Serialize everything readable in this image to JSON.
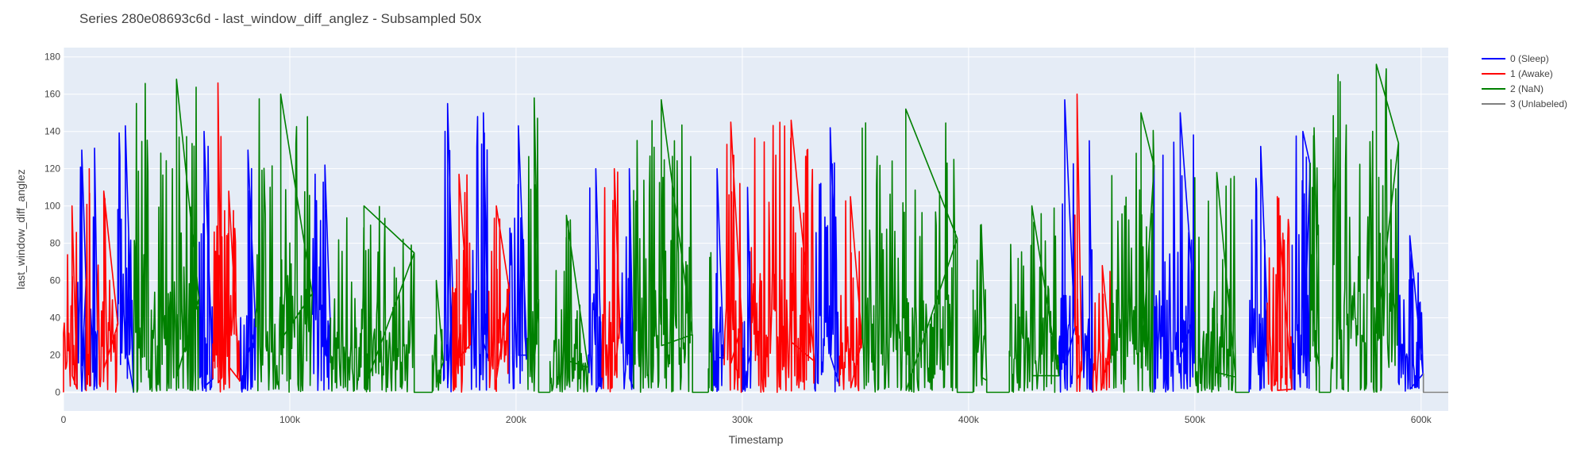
{
  "chart_data": {
    "type": "line",
    "title": "Series 280e08693c6d - last_window_diff_anglez - Subsampled 50x",
    "xlabel": "Timestamp",
    "ylabel": "last_window_diff_anglez",
    "xlim": [
      0,
      612000
    ],
    "ylim": [
      -10,
      185
    ],
    "x_ticks": [
      0,
      100000,
      200000,
      300000,
      400000,
      500000,
      600000
    ],
    "x_tick_labels": [
      "0",
      "100k",
      "200k",
      "300k",
      "400k",
      "500k",
      "600k"
    ],
    "y_ticks": [
      0,
      20,
      40,
      60,
      80,
      100,
      120,
      140,
      160,
      180
    ],
    "y_tick_labels": [
      "0",
      "20",
      "40",
      "60",
      "80",
      "100",
      "120",
      "140",
      "160",
      "180"
    ],
    "grid": true,
    "legend_position": "top-right",
    "series": [
      {
        "name": "0 (Sleep)",
        "color": "#0000ff"
      },
      {
        "name": "1 (Awake)",
        "color": "#ff0000"
      },
      {
        "name": "2 (NaN)",
        "color": "#008000"
      },
      {
        "name": "3 (Unlabeled)",
        "color": "#808080"
      }
    ],
    "segments": [
      {
        "series": 1,
        "x0": 0,
        "x1": 6000,
        "lo": 0,
        "hi": 100
      },
      {
        "series": 0,
        "x0": 6000,
        "x1": 10000,
        "lo": 0,
        "hi": 130
      },
      {
        "series": 1,
        "x0": 10000,
        "x1": 12000,
        "lo": 0,
        "hi": 120
      },
      {
        "series": 0,
        "x0": 12000,
        "x1": 15000,
        "lo": 0,
        "hi": 131
      },
      {
        "series": 1,
        "x0": 15000,
        "x1": 24000,
        "lo": 0,
        "hi": 108
      },
      {
        "series": 0,
        "x0": 24000,
        "x1": 31000,
        "lo": 0,
        "hi": 143
      },
      {
        "series": 2,
        "x0": 31000,
        "x1": 60000,
        "lo": 0,
        "hi": 168
      },
      {
        "series": 0,
        "x0": 60000,
        "x1": 66000,
        "lo": 0,
        "hi": 140
      },
      {
        "series": 1,
        "x0": 66000,
        "x1": 70000,
        "lo": 0,
        "hi": 166
      },
      {
        "series": 1,
        "x0": 70000,
        "x1": 78000,
        "lo": 0,
        "hi": 108
      },
      {
        "series": 0,
        "x0": 78000,
        "x1": 85000,
        "lo": 0,
        "hi": 130
      },
      {
        "series": 2,
        "x0": 85000,
        "x1": 110000,
        "lo": 0,
        "hi": 160
      },
      {
        "series": 0,
        "x0": 110000,
        "x1": 118000,
        "lo": 0,
        "hi": 122
      },
      {
        "series": 2,
        "x0": 118000,
        "x1": 155000,
        "lo": 0,
        "hi": 100
      },
      {
        "series": 2,
        "x0": 155000,
        "x1": 163000,
        "flat": 0
      },
      {
        "series": 2,
        "x0": 163000,
        "x1": 168000,
        "lo": 0,
        "hi": 60
      },
      {
        "series": 0,
        "x0": 168000,
        "x1": 172000,
        "lo": 0,
        "hi": 155
      },
      {
        "series": 1,
        "x0": 172000,
        "x1": 180000,
        "lo": 0,
        "hi": 117
      },
      {
        "series": 0,
        "x0": 180000,
        "x1": 188000,
        "lo": 0,
        "hi": 150
      },
      {
        "series": 1,
        "x0": 188000,
        "x1": 197000,
        "lo": 0,
        "hi": 100
      },
      {
        "series": 0,
        "x0": 197000,
        "x1": 205000,
        "lo": 0,
        "hi": 143
      },
      {
        "series": 2,
        "x0": 205000,
        "x1": 210000,
        "lo": 0,
        "hi": 158
      },
      {
        "series": 2,
        "x0": 210000,
        "x1": 215000,
        "flat": 0
      },
      {
        "series": 2,
        "x0": 215000,
        "x1": 232000,
        "lo": 0,
        "hi": 95
      },
      {
        "series": 0,
        "x0": 232000,
        "x1": 238000,
        "lo": 0,
        "hi": 120
      },
      {
        "series": 1,
        "x0": 238000,
        "x1": 246000,
        "lo": 0,
        "hi": 120
      },
      {
        "series": 0,
        "x0": 246000,
        "x1": 252000,
        "lo": 0,
        "hi": 120
      },
      {
        "series": 2,
        "x0": 252000,
        "x1": 278000,
        "lo": 0,
        "hi": 157
      },
      {
        "series": 2,
        "x0": 278000,
        "x1": 285000,
        "flat": 0
      },
      {
        "series": 2,
        "x0": 285000,
        "x1": 287000,
        "lo": 0,
        "hi": 75
      },
      {
        "series": 0,
        "x0": 287000,
        "x1": 292000,
        "lo": 0,
        "hi": 120
      },
      {
        "series": 1,
        "x0": 292000,
        "x1": 300000,
        "lo": 0,
        "hi": 145
      },
      {
        "series": 0,
        "x0": 300000,
        "x1": 304000,
        "lo": 0,
        "hi": 110
      },
      {
        "series": 1,
        "x0": 304000,
        "x1": 332000,
        "lo": 0,
        "hi": 146
      },
      {
        "series": 0,
        "x0": 332000,
        "x1": 343000,
        "lo": 0,
        "hi": 142
      },
      {
        "series": 1,
        "x0": 343000,
        "x1": 353000,
        "lo": 0,
        "hi": 105
      },
      {
        "series": 2,
        "x0": 353000,
        "x1": 395000,
        "lo": 0,
        "hi": 152
      },
      {
        "series": 2,
        "x0": 395000,
        "x1": 402000,
        "flat": 0
      },
      {
        "series": 2,
        "x0": 402000,
        "x1": 408000,
        "lo": 0,
        "hi": 90
      },
      {
        "series": 2,
        "x0": 408000,
        "x1": 418000,
        "flat": 0
      },
      {
        "series": 2,
        "x0": 418000,
        "x1": 440000,
        "lo": 0,
        "hi": 100
      },
      {
        "series": 0,
        "x0": 440000,
        "x1": 447000,
        "lo": 0,
        "hi": 157
      },
      {
        "series": 1,
        "x0": 447000,
        "x1": 450000,
        "lo": 0,
        "hi": 160
      },
      {
        "series": 0,
        "x0": 450000,
        "x1": 455000,
        "lo": 0,
        "hi": 135
      },
      {
        "series": 1,
        "x0": 455000,
        "x1": 463000,
        "lo": 0,
        "hi": 68
      },
      {
        "series": 2,
        "x0": 463000,
        "x1": 482000,
        "lo": 0,
        "hi": 150
      },
      {
        "series": 0,
        "x0": 482000,
        "x1": 500000,
        "lo": 0,
        "hi": 150
      },
      {
        "series": 2,
        "x0": 500000,
        "x1": 518000,
        "lo": 0,
        "hi": 118
      },
      {
        "series": 2,
        "x0": 518000,
        "x1": 524000,
        "flat": 0
      },
      {
        "series": 0,
        "x0": 524000,
        "x1": 532000,
        "lo": 0,
        "hi": 132
      },
      {
        "series": 1,
        "x0": 532000,
        "x1": 543000,
        "lo": 0,
        "hi": 105
      },
      {
        "series": 0,
        "x0": 543000,
        "x1": 551000,
        "lo": 0,
        "hi": 140
      },
      {
        "series": 2,
        "x0": 551000,
        "x1": 555000,
        "lo": 0,
        "hi": 142
      },
      {
        "series": 2,
        "x0": 555000,
        "x1": 560000,
        "flat": 0
      },
      {
        "series": 2,
        "x0": 560000,
        "x1": 590000,
        "lo": 0,
        "hi": 176
      },
      {
        "series": 0,
        "x0": 590000,
        "x1": 601000,
        "lo": 0,
        "hi": 84
      },
      {
        "series": 3,
        "x0": 601000,
        "x1": 612000,
        "flat": 0
      }
    ]
  }
}
